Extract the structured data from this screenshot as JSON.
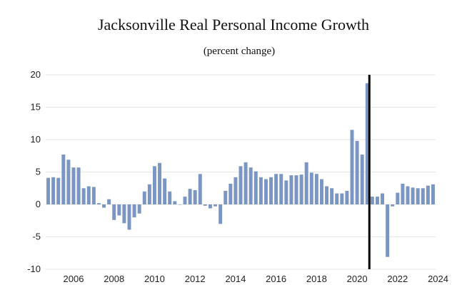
{
  "chart_data": {
    "type": "bar",
    "title": "Jacksonville Real Personal Income Growth",
    "subtitle": "(percent change)",
    "xlabel": "",
    "ylabel": "",
    "ylim": [
      -10,
      20
    ],
    "yticks": [
      20,
      15,
      10,
      5,
      0,
      -5,
      -10
    ],
    "xticks": [
      {
        "label": "2006",
        "index": 5
      },
      {
        "label": "2008",
        "index": 13
      },
      {
        "label": "2010",
        "index": 21
      },
      {
        "label": "2012",
        "index": 29
      },
      {
        "label": "2014",
        "index": 37
      },
      {
        "label": "2016",
        "index": 45
      },
      {
        "label": "2018",
        "index": 53
      },
      {
        "label": "2020",
        "index": 61
      },
      {
        "label": "2022",
        "index": 69
      },
      {
        "label": "2024",
        "index": 77
      }
    ],
    "vertical_line_after_index": 63,
    "bar_color": "#7b96c2",
    "line_color": "#000000",
    "grid_color": "#e6e6e6",
    "values": [
      4.1,
      4.2,
      4.1,
      7.7,
      6.9,
      5.7,
      5.7,
      2.5,
      2.8,
      2.7,
      0.2,
      -0.5,
      0.8,
      -2.4,
      -1.7,
      -2.9,
      -3.9,
      -2.0,
      -1.4,
      2.0,
      3.1,
      5.9,
      6.4,
      4.0,
      2.0,
      0.5,
      0.0,
      1.2,
      2.4,
      2.2,
      4.7,
      -0.2,
      -0.6,
      -0.3,
      -3.0,
      2.1,
      3.2,
      4.2,
      5.9,
      6.5,
      5.7,
      5.1,
      4.2,
      3.9,
      4.2,
      4.7,
      4.7,
      3.7,
      4.5,
      4.5,
      4.6,
      6.5,
      4.9,
      4.7,
      3.9,
      2.8,
      2.5,
      1.7,
      1.7,
      2.1,
      11.5,
      9.8,
      7.7,
      18.7,
      1.2,
      1.2,
      1.7,
      -8.1,
      -0.3,
      1.8,
      3.2,
      2.8,
      2.6,
      2.5,
      2.5,
      2.9,
      3.1
    ]
  }
}
